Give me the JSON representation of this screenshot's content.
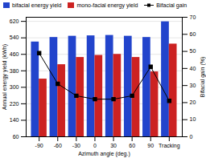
{
  "chart_data": {
    "type": "bar",
    "categories": [
      "-90",
      "-60",
      "-30",
      "0",
      "30",
      "60",
      "90",
      "Tracking"
    ],
    "series": [
      {
        "name": "bifacial energy yield",
        "color": "#2244cc",
        "values": [
          520,
          542,
          548,
          550,
          552,
          548,
          542,
          618
        ]
      },
      {
        "name": "mono-facial energy yield",
        "color": "#cc2222",
        "values": [
          340,
          410,
          445,
          455,
          460,
          445,
          375,
          510
        ]
      },
      {
        "name": "Bifacial gain",
        "color": "black",
        "type": "line",
        "marker": "square",
        "axis": "y2",
        "values": [
          49,
          31,
          24,
          22,
          22,
          24,
          41,
          21
        ]
      }
    ],
    "xlabel": "Azimuth angle (deg.)",
    "ylabel": "Annual energy yield (kWh)",
    "y2label": "Bifacial gain (%)",
    "ylim": [
      60,
      640
    ],
    "yticks": [
      60,
      140,
      220,
      300,
      380,
      460,
      540,
      620
    ],
    "y2lim": [
      0,
      70
    ],
    "y2ticks": [
      0,
      10,
      20,
      30,
      40,
      50,
      60,
      70
    ],
    "grid": true,
    "legend": "upper left"
  }
}
